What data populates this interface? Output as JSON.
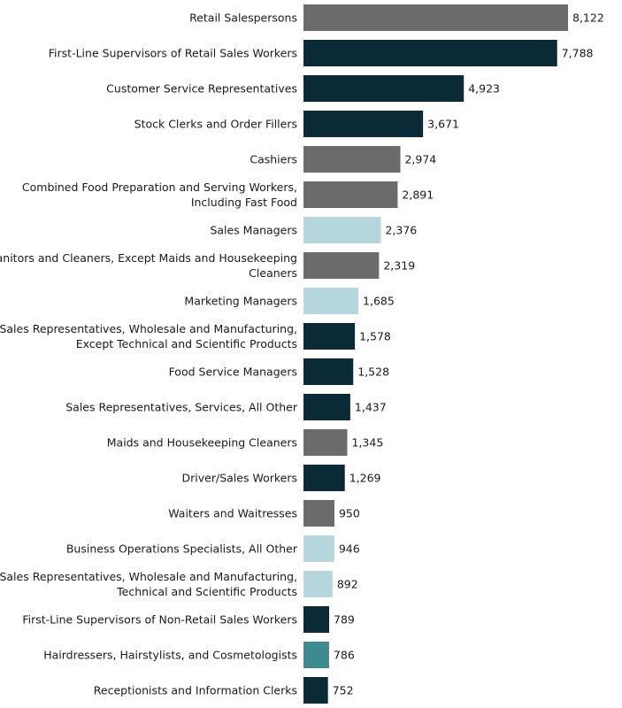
{
  "chart_data": {
    "type": "bar",
    "orientation": "horizontal",
    "title": "",
    "xlabel": "",
    "ylabel": "",
    "xlim": [
      0,
      8122
    ],
    "grid": false,
    "legend": "none",
    "categories": [
      [
        "Retail Salespersons"
      ],
      [
        "First-Line Supervisors of Retail Sales Workers"
      ],
      [
        "Customer Service Representatives"
      ],
      [
        "Stock Clerks and Order Fillers"
      ],
      [
        "Cashiers"
      ],
      [
        "Combined Food Preparation and Serving Workers,",
        "Including Fast Food"
      ],
      [
        "Sales Managers"
      ],
      [
        "Janitors and Cleaners, Except Maids and Housekeeping",
        "Cleaners"
      ],
      [
        "Marketing Managers"
      ],
      [
        "Sales Representatives, Wholesale and Manufacturing,",
        "Except Technical and Scientific Products"
      ],
      [
        "Food Service Managers"
      ],
      [
        "Sales Representatives, Services, All Other"
      ],
      [
        "Maids and Housekeeping Cleaners"
      ],
      [
        "Driver/Sales Workers"
      ],
      [
        "Waiters and Waitresses"
      ],
      [
        "Business Operations Specialists, All Other"
      ],
      [
        "Sales Representatives, Wholesale and Manufacturing,",
        "Technical and Scientific Products"
      ],
      [
        "First-Line Supervisors of Non-Retail Sales Workers"
      ],
      [
        "Hairdressers, Hairstylists, and Cosmetologists"
      ],
      [
        "Receptionists and Information Clerks"
      ]
    ],
    "values": [
      8122,
      7788,
      4923,
      3671,
      2974,
      2891,
      2376,
      2319,
      1685,
      1578,
      1528,
      1437,
      1345,
      1269,
      950,
      946,
      892,
      789,
      786,
      752
    ],
    "value_labels": [
      "8,122",
      "7,788",
      "4,923",
      "3,671",
      "2,974",
      "2,891",
      "2,376",
      "2,319",
      "1,685",
      "1,578",
      "1,528",
      "1,437",
      "1,345",
      "1,269",
      "950",
      "946",
      "892",
      "789",
      "786",
      "752"
    ],
    "bar_colors": [
      "#6b6b6b",
      "#0b2a37",
      "#0b2a37",
      "#0b2a37",
      "#6b6b6b",
      "#6b6b6b",
      "#b5d6dd",
      "#6b6b6b",
      "#b5d6dd",
      "#0b2a37",
      "#0b2a37",
      "#0b2a37",
      "#6b6b6b",
      "#0b2a37",
      "#6b6b6b",
      "#b5d6dd",
      "#b5d6dd",
      "#0b2a37",
      "#3d8a90",
      "#0b2a37"
    ]
  }
}
